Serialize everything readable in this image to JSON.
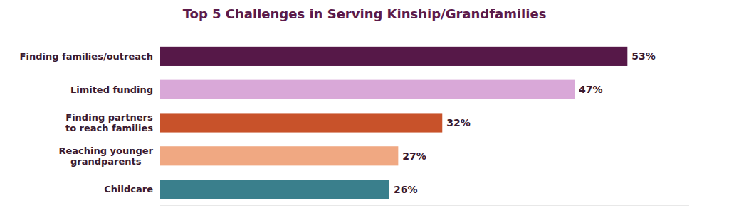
{
  "chart_data": {
    "type": "bar",
    "orientation": "horizontal",
    "title": "Top 5 Challenges in Serving Kinship/Grandfamilies",
    "categories": [
      "Finding families/outreach",
      "Limited funding",
      "Finding partners\nto reach families",
      "Reaching younger\ngrandparents",
      "Childcare"
    ],
    "values": [
      53,
      47,
      32,
      27,
      26
    ],
    "value_labels": [
      "53%",
      "47%",
      "32%",
      "27%",
      "26%"
    ],
    "colors": [
      "#561848",
      "#d9a8d8",
      "#c8522a",
      "#f0a882",
      "#3a7f8c"
    ],
    "xlim": [
      0,
      60
    ],
    "data_labels": true,
    "tick_labels": "y",
    "grid": false
  }
}
